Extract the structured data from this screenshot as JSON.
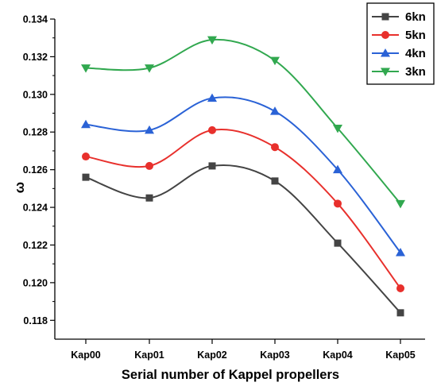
{
  "chart_data": {
    "type": "line",
    "title": "",
    "xlabel": "Serial number of Kappel propellers",
    "ylabel": "ω",
    "categories": [
      "Kap00",
      "Kap01",
      "Kap02",
      "Kap03",
      "Kap04",
      "Kap05"
    ],
    "ylim": [
      0.117,
      0.134
    ],
    "yticks": [
      "0.118",
      "0.120",
      "0.122",
      "0.124",
      "0.126",
      "0.128",
      "0.130",
      "0.132",
      "0.134"
    ],
    "grid": false,
    "legend_position": "top-right",
    "series": [
      {
        "name": "6kn",
        "color": "#444444",
        "marker": "square",
        "values": [
          0.1256,
          0.1245,
          0.1262,
          0.1254,
          0.1221,
          0.1184
        ]
      },
      {
        "name": "5kn",
        "color": "#e8302c",
        "marker": "circle",
        "values": [
          0.1267,
          0.1262,
          0.1281,
          0.1272,
          0.1242,
          0.1197
        ]
      },
      {
        "name": "4kn",
        "color": "#2a62d6",
        "marker": "triangle-up",
        "values": [
          0.1284,
          0.1281,
          0.1298,
          0.1291,
          0.126,
          0.1216
        ]
      },
      {
        "name": "3kn",
        "color": "#31a84f",
        "marker": "triangle-down",
        "values": [
          0.1314,
          0.1314,
          0.1329,
          0.1318,
          0.1282,
          0.1242
        ]
      }
    ]
  }
}
